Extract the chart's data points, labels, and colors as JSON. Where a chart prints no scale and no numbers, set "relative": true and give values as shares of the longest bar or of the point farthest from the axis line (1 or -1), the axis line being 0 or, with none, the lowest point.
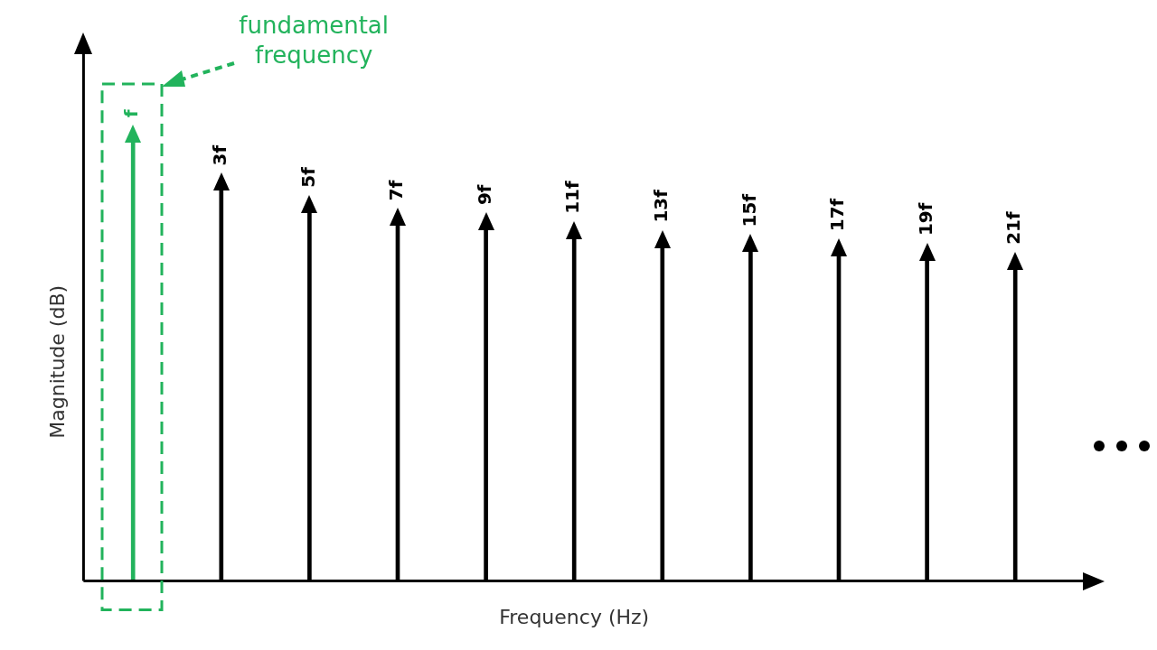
{
  "chart_data": {
    "type": "bar",
    "xlabel": "Frequency (Hz)",
    "ylabel": "Magnitude (dB)",
    "relative": true,
    "grid": false,
    "legend": false,
    "categories": [
      "f",
      "3f",
      "5f",
      "7f",
      "9f",
      "11f",
      "13f",
      "15f",
      "17f",
      "19f",
      "21f"
    ],
    "values": [
      1,
      0.89,
      0.84,
      0.81,
      0.8,
      0.78,
      0.76,
      0.75,
      0.74,
      0.73,
      0.71
    ],
    "colors": [
      "#22b35c",
      "#000000",
      "#000000",
      "#000000",
      "#000000",
      "#000000",
      "#000000",
      "#000000",
      "#000000",
      "#000000",
      "#000000"
    ],
    "annotations": [
      "fundamental frequency"
    ]
  }
}
